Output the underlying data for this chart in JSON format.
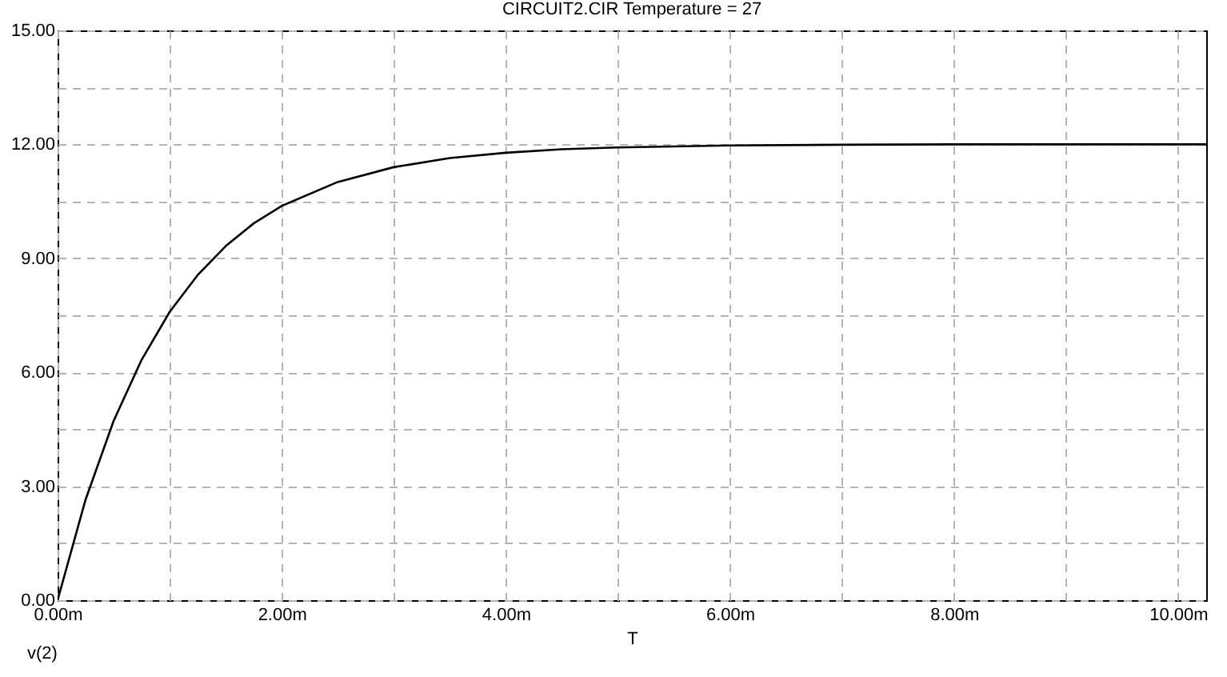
{
  "chart_data": {
    "type": "line",
    "title": "CIRCUIT2.CIR Temperature = 27",
    "xlabel": "T",
    "x": [
      0,
      0.25,
      0.5,
      0.75,
      1,
      1.25,
      1.5,
      1.75,
      2,
      2.5,
      3,
      3.5,
      4,
      4.5,
      5,
      6,
      7,
      8,
      9,
      10,
      10.25
    ],
    "series": [
      {
        "name": "v(2)",
        "color": "#000000",
        "values": [
          0,
          2.65,
          4.72,
          6.33,
          7.59,
          8.56,
          9.32,
          9.92,
          10.38,
          11.01,
          11.4,
          11.64,
          11.78,
          11.87,
          11.92,
          11.97,
          11.99,
          12,
          12,
          12,
          12
        ]
      }
    ],
    "xlim": [
      0,
      10.25
    ],
    "ylim": [
      0,
      15
    ],
    "xticks": [
      {
        "value": 0,
        "label": "0.00m"
      },
      {
        "value": 1,
        "label": null
      },
      {
        "value": 2,
        "label": "2.00m"
      },
      {
        "value": 3,
        "label": null
      },
      {
        "value": 4,
        "label": "4.00m"
      },
      {
        "value": 5,
        "label": null
      },
      {
        "value": 6,
        "label": "6.00m"
      },
      {
        "value": 7,
        "label": null
      },
      {
        "value": 8,
        "label": "8.00m"
      },
      {
        "value": 9,
        "label": null
      },
      {
        "value": 10,
        "label": "10.00m"
      }
    ],
    "yticks": [
      {
        "value": 0,
        "label": "0.00"
      },
      {
        "value": 1.5,
        "label": null
      },
      {
        "value": 3,
        "label": "3.00"
      },
      {
        "value": 4.5,
        "label": null
      },
      {
        "value": 6,
        "label": "6.00"
      },
      {
        "value": 7.5,
        "label": null
      },
      {
        "value": 9,
        "label": "9.00"
      },
      {
        "value": 10.5,
        "label": null
      },
      {
        "value": 12,
        "label": "12.00"
      },
      {
        "value": 13.5,
        "label": null
      },
      {
        "value": 15,
        "label": "15.00"
      }
    ],
    "grid": true,
    "legend": "bottom left",
    "line_style": "solid"
  }
}
